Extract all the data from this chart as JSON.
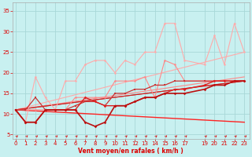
{
  "background_color": "#c8f0f0",
  "grid_color": "#a8d8d8",
  "xlabel": "Vent moyen/en rafales ( km/h )",
  "ylabel_ticks": [
    5,
    10,
    15,
    20,
    25,
    30,
    35
  ],
  "xlim": [
    -0.3,
    23.5
  ],
  "ylim": [
    4,
    37
  ],
  "xticks": [
    0,
    1,
    2,
    3,
    4,
    5,
    6,
    7,
    8,
    9,
    10,
    11,
    12,
    13,
    14,
    15,
    16,
    17,
    19,
    20,
    21,
    22,
    23
  ],
  "lines": [
    {
      "x": [
        0,
        23
      ],
      "y": [
        11,
        25
      ],
      "color": "#ffaaaa",
      "lw": 0.8,
      "marker": null,
      "ms": 0,
      "zorder": 2
    },
    {
      "x": [
        0,
        23
      ],
      "y": [
        11,
        19
      ],
      "color": "#ff8888",
      "lw": 0.8,
      "marker": null,
      "ms": 0,
      "zorder": 2
    },
    {
      "x": [
        0,
        23
      ],
      "y": [
        11,
        18
      ],
      "color": "#dd4444",
      "lw": 0.8,
      "marker": null,
      "ms": 0,
      "zorder": 2
    },
    {
      "x": [
        0,
        23
      ],
      "y": [
        11,
        18
      ],
      "color": "#cc2222",
      "lw": 0.8,
      "marker": null,
      "ms": 0,
      "zorder": 2
    },
    {
      "x": [
        0,
        23
      ],
      "y": [
        11,
        8
      ],
      "color": "#ff2222",
      "lw": 1.0,
      "marker": null,
      "ms": 0,
      "zorder": 2
    },
    {
      "x": [
        0,
        1,
        2,
        3,
        4,
        5,
        6,
        7,
        8,
        9,
        10,
        11,
        12,
        13,
        14,
        15,
        16,
        17,
        19,
        20,
        21,
        22,
        23
      ],
      "y": [
        11,
        8,
        19,
        14,
        11,
        18,
        18,
        22,
        23,
        23,
        20,
        23,
        22,
        25,
        25,
        32,
        32,
        23,
        22,
        29,
        22,
        32,
        25
      ],
      "color": "#ffaaaa",
      "lw": 0.8,
      "marker": "o",
      "ms": 1.8,
      "zorder": 3
    },
    {
      "x": [
        0,
        1,
        2,
        3,
        4,
        5,
        6,
        7,
        8,
        9,
        10,
        11,
        12,
        13,
        14,
        15,
        16,
        17,
        19,
        20,
        21,
        22,
        23
      ],
      "y": [
        11,
        11,
        11,
        11,
        11,
        11,
        14,
        14,
        14,
        14,
        18,
        18,
        18,
        19,
        14,
        23,
        22,
        18,
        18,
        18,
        18,
        18,
        18
      ],
      "color": "#ff8888",
      "lw": 0.8,
      "marker": "o",
      "ms": 1.8,
      "zorder": 3
    },
    {
      "x": [
        0,
        1,
        2,
        3,
        4,
        5,
        6,
        7,
        8,
        9,
        10,
        11,
        12,
        13,
        14,
        15,
        16,
        17,
        19,
        20,
        21,
        22,
        23
      ],
      "y": [
        11,
        8,
        8,
        11,
        11,
        11,
        11,
        14,
        13,
        12,
        12,
        12,
        13,
        14,
        14,
        15,
        16,
        16,
        17,
        18,
        18,
        18,
        18
      ],
      "color": "#dd2222",
      "lw": 1.0,
      "marker": "D",
      "ms": 1.8,
      "zorder": 4
    },
    {
      "x": [
        0,
        1,
        2,
        3,
        4,
        5,
        6,
        7,
        8,
        9,
        10,
        11,
        12,
        13,
        14,
        15,
        16,
        17,
        19,
        20,
        21,
        22,
        23
      ],
      "y": [
        11,
        8,
        8,
        11,
        11,
        11,
        11,
        8,
        7,
        8,
        12,
        12,
        13,
        14,
        14,
        15,
        15,
        15,
        16,
        17,
        17,
        18,
        18
      ],
      "color": "#bb1111",
      "lw": 1.2,
      "marker": "D",
      "ms": 1.8,
      "zorder": 4
    },
    {
      "x": [
        0,
        1,
        2,
        3,
        4,
        5,
        6,
        7,
        8,
        9,
        10,
        11,
        12,
        13,
        14,
        15,
        16,
        17,
        19,
        20,
        21,
        22,
        23
      ],
      "y": [
        11,
        11,
        14,
        11,
        11,
        11,
        12,
        13,
        13,
        12,
        15,
        15,
        16,
        16,
        17,
        17,
        18,
        18,
        18,
        18,
        18,
        18,
        18
      ],
      "color": "#cc3333",
      "lw": 0.9,
      "marker": "s",
      "ms": 1.8,
      "zorder": 3
    }
  ],
  "arrow_color": "#dd0000",
  "tick_label_color": "#dd0000",
  "axis_label_color": "#dd0000",
  "tick_fontsize": 5.0,
  "xlabel_fontsize": 5.5
}
